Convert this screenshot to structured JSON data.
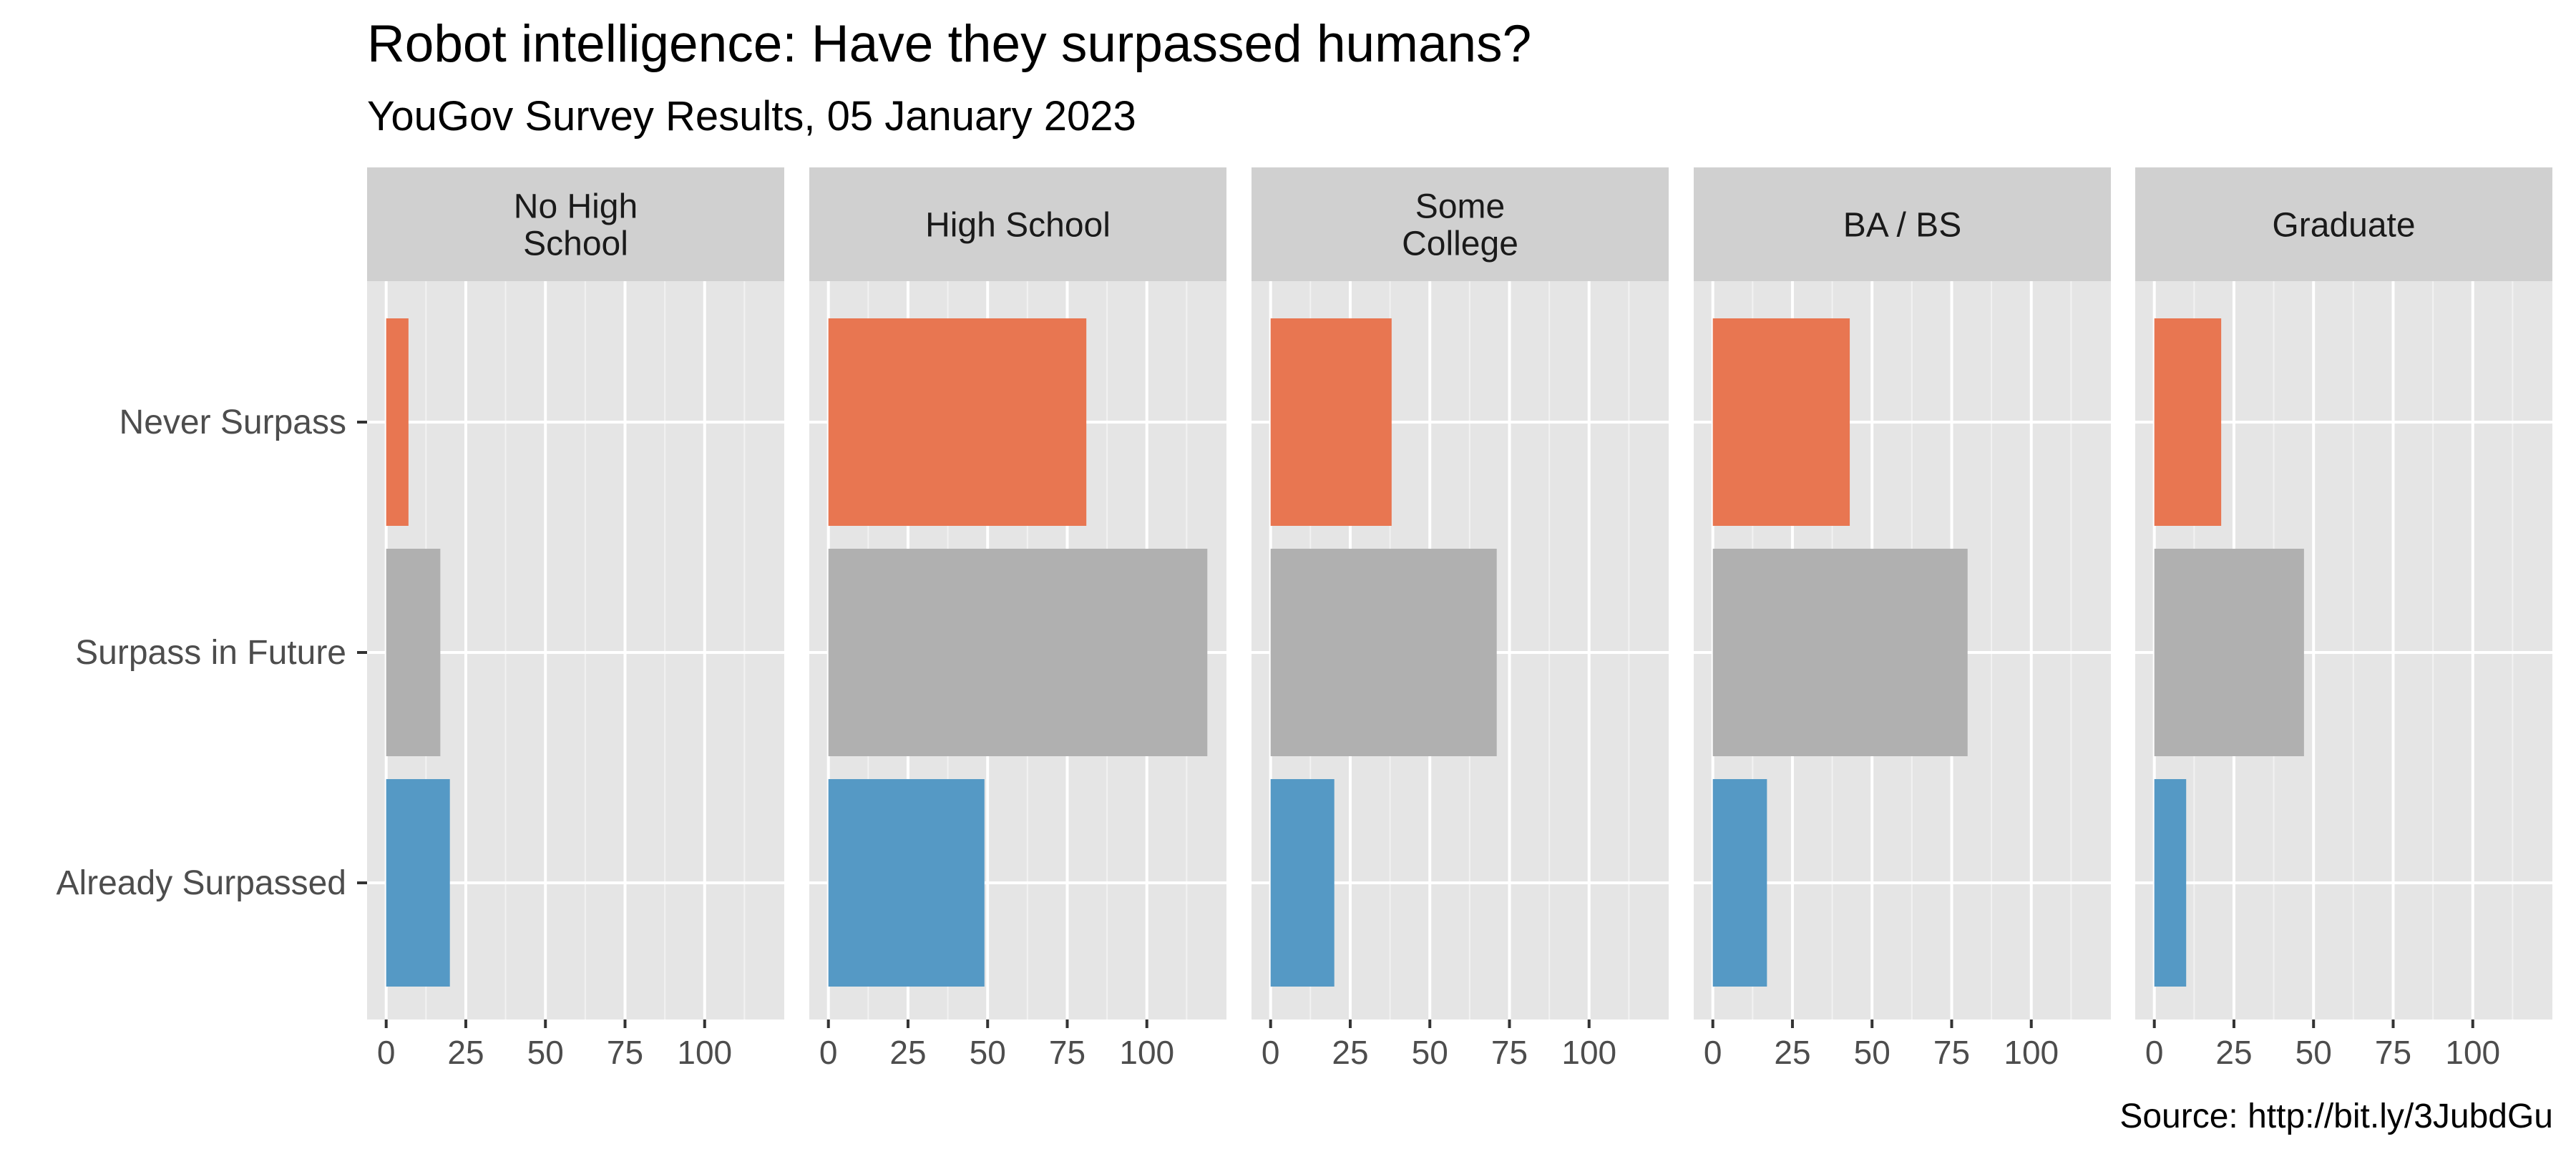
{
  "chart_data": {
    "type": "bar",
    "title": "Robot intelligence: Have they surpassed humans?",
    "subtitle": "YouGov Survey Results, 05 January 2023",
    "caption": "Source: http://bit.ly/3JubdGu",
    "categories": [
      "Never Surpass",
      "Surpass in Future",
      "Already Surpassed"
    ],
    "x_ticks": [
      0,
      25,
      50,
      75,
      100
    ],
    "xlim": [
      -6,
      125
    ],
    "grid": true,
    "legend": "none",
    "colors": {
      "Never Surpass": "#E87651",
      "Surpass in Future": "#B0B0B0",
      "Already Surpassed": "#5599C5"
    },
    "facets": [
      {
        "label": [
          "No High",
          "School"
        ],
        "values": [
          7,
          17,
          20
        ]
      },
      {
        "label": [
          "High School"
        ],
        "values": [
          81,
          119,
          49
        ]
      },
      {
        "label": [
          "Some",
          "College"
        ],
        "values": [
          38,
          71,
          20
        ]
      },
      {
        "label": [
          "BA / BS"
        ],
        "values": [
          43,
          80,
          17
        ]
      },
      {
        "label": [
          "Graduate"
        ],
        "values": [
          21,
          47,
          10
        ]
      }
    ]
  }
}
